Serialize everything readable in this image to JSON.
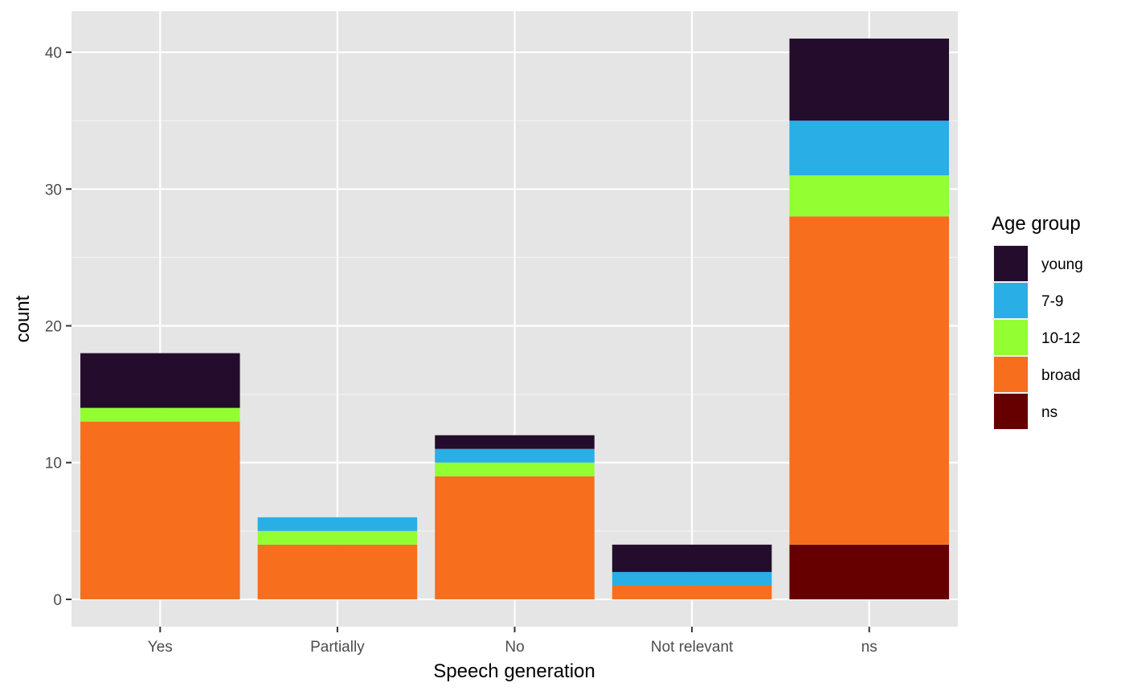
{
  "chart_data": {
    "type": "bar",
    "stacked": true,
    "title": "",
    "xlabel": "Speech generation",
    "ylabel": "count",
    "categories": [
      "Yes",
      "Partially",
      "No",
      "Not relevant",
      "ns"
    ],
    "ylim": [
      -2,
      43
    ],
    "yticks": [
      0,
      10,
      20,
      30,
      40
    ],
    "grid": true,
    "legend": {
      "title": "Age group",
      "position": "right"
    },
    "series": [
      {
        "name": "young",
        "color": "#240c2c",
        "values": [
          4,
          0,
          1,
          2,
          6
        ]
      },
      {
        "name": "7-9",
        "color": "#29aee6",
        "values": [
          0,
          1,
          1,
          1,
          4
        ]
      },
      {
        "name": "10-12",
        "color": "#93fe31",
        "values": [
          1,
          1,
          1,
          0,
          3
        ]
      },
      {
        "name": "broad",
        "color": "#f76e1d",
        "values": [
          13,
          4,
          9,
          1,
          24
        ]
      },
      {
        "name": "ns",
        "color": "#660000",
        "values": [
          0,
          0,
          0,
          0,
          4
        ]
      }
    ]
  }
}
